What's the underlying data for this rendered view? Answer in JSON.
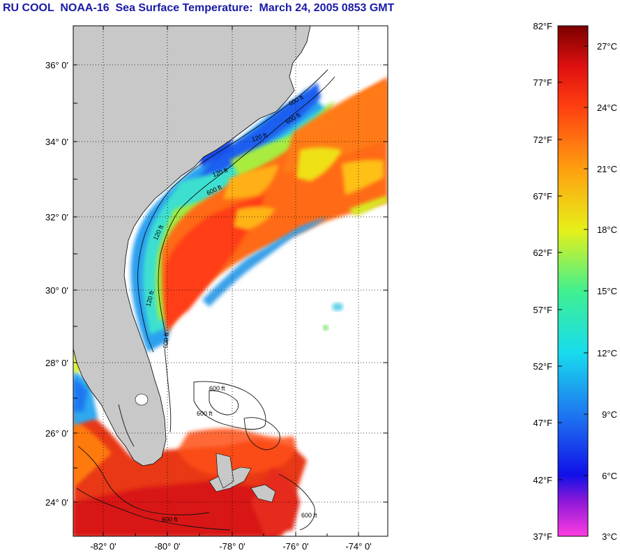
{
  "title": "RU COOL  NOAA-16  Sea Surface Temperature:  March 24, 2005 0853 GMT",
  "map": {
    "lon_range": [
      -83,
      -73
    ],
    "lat_range": [
      23,
      37
    ],
    "lat_ticks": [
      "24° 0'",
      "26° 0'",
      "28° 0'",
      "30° 0'",
      "32° 0'",
      "34° 0'",
      "36° 0'"
    ],
    "lon_ticks": [
      "-82° 0'",
      "-80° 0'",
      "-78° 0'",
      "-76° 0'",
      "-74° 0'"
    ],
    "contour_labels": [
      "120 ft",
      "600 ft",
      "120 ft",
      "600 ft",
      "120 ft",
      "600 ft",
      "120 ft",
      "600 ft",
      "600 ft",
      "600 ft",
      "600 ft",
      "600 ft"
    ],
    "colors": {
      "land": "#c8c8c8",
      "missing": "#ffffff"
    }
  },
  "colorbar": {
    "fahrenheit_labels": [
      "82°F",
      "77°F",
      "72°F",
      "67°F",
      "62°F",
      "57°F",
      "52°F",
      "47°F",
      "42°F",
      "37°F"
    ],
    "celsius_labels": [
      "27°C",
      "24°C",
      "21°C",
      "18°C",
      "15°C",
      "12°C",
      "9°C",
      "6°C",
      "3°C"
    ],
    "stops": [
      "#ff3ce0",
      "#8a18d8",
      "#1010e8",
      "#1e78f0",
      "#18dcee",
      "#40f090",
      "#e6f018",
      "#ff9f10",
      "#ff4010",
      "#e01010",
      "#7a0000"
    ]
  }
}
